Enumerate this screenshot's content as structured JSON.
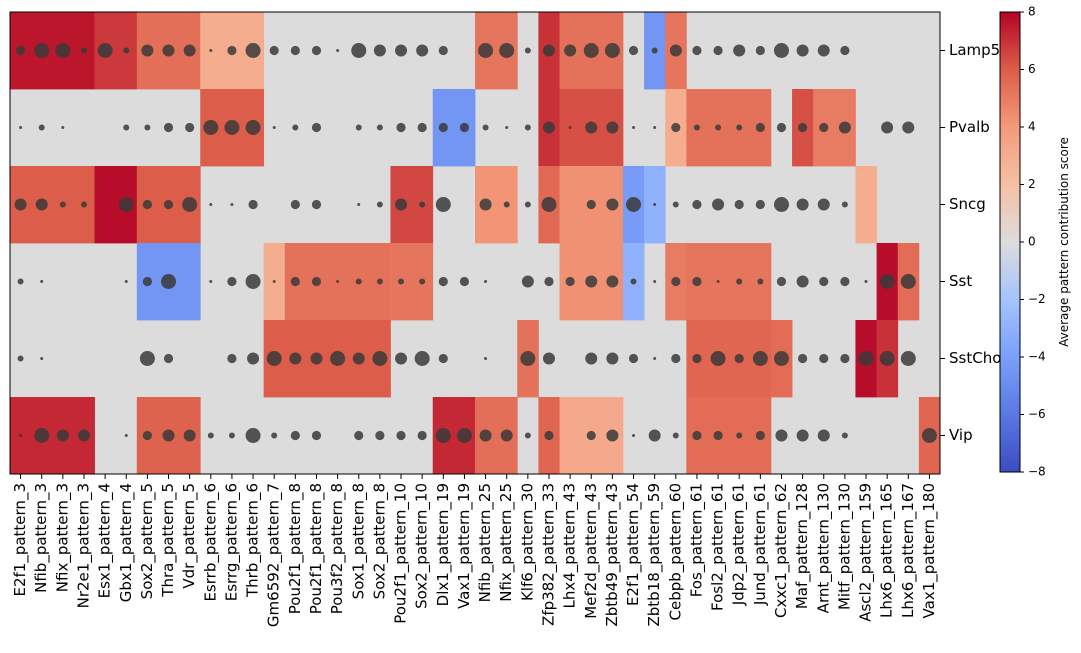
{
  "chart_data": {
    "type": "heatmap",
    "title": "",
    "xlabel": "",
    "ylabel": "",
    "colorbar": {
      "label": "Average pattern contribution score",
      "vmin": -8,
      "vmax": 8,
      "ticks": [
        -8,
        -6,
        -4,
        -2,
        0,
        2,
        4,
        6,
        8
      ],
      "colormap": "coolwarm"
    },
    "rows": [
      "Lamp5",
      "Pvalb",
      "Sncg",
      "Sst",
      "SstChodl",
      "Vip"
    ],
    "row_labels_visible": [
      "Lamp5",
      "Pvalb",
      "Sncg",
      "Sst",
      "SstCho",
      "Vip"
    ],
    "row_segments": [
      [
        {
          "from": "E2f1_pattern_3",
          "to": "Nr2e1_pattern_3",
          "value": 7.6
        },
        {
          "from": "Esx1_pattern_4",
          "to": "Gbx1_pattern_4",
          "value": 6.8
        },
        {
          "from": "Sox2_pattern_5",
          "to": "Vdr_pattern_5",
          "value": 5.4
        },
        {
          "from": "Esrrb_pattern_6",
          "to": "Thrb_pattern_6",
          "value": 3.0
        },
        {
          "from": "Nfib_pattern_25",
          "to": "Nfix_pattern_25",
          "value": 5.2
        },
        {
          "from": "Zfp382_pattern_33",
          "to": "Zfp382_pattern_33",
          "value": 7.0
        },
        {
          "from": "Lhx4_pattern_43",
          "to": "Zbtb49_pattern_43",
          "value": 5.3
        },
        {
          "from": "Zbtb18_pattern_59",
          "to": "Zbtb18_pattern_59",
          "value": -4.5
        },
        {
          "from": "Cebpb_pattern_60",
          "to": "Cebpb_pattern_60",
          "value": 5.2
        }
      ],
      [
        {
          "from": "Esrrb_pattern_6",
          "to": "Thrb_pattern_6",
          "value": 6.0
        },
        {
          "from": "Dlx1_pattern_19",
          "to": "Vax1_pattern_19",
          "value": -4.5
        },
        {
          "from": "Zfp382_pattern_33",
          "to": "Zfp382_pattern_33",
          "value": 7.0
        },
        {
          "from": "Lhx4_pattern_43",
          "to": "Zbtb49_pattern_43",
          "value": 6.3
        },
        {
          "from": "Cebpb_pattern_60",
          "to": "Cebpb_pattern_60",
          "value": 3.0
        },
        {
          "from": "Fos_pattern_61",
          "to": "Jund_pattern_61",
          "value": 5.3
        },
        {
          "from": "Maf_pattern_128",
          "to": "Maf_pattern_128",
          "value": 6.3
        },
        {
          "from": "Arnt_pattern_130",
          "to": "Mitf_pattern_130",
          "value": 5.0
        }
      ],
      [
        {
          "from": "E2f1_pattern_3",
          "to": "Nr2e1_pattern_3",
          "value": 6.0
        },
        {
          "from": "Esx1_pattern_4",
          "to": "Gbx1_pattern_4",
          "value": 7.8
        },
        {
          "from": "Sox2_pattern_5",
          "to": "Vdr_pattern_5",
          "value": 6.0
        },
        {
          "from": "Pou2f1_pattern_10",
          "to": "Sox2_pattern_10",
          "value": 6.5
        },
        {
          "from": "Nfib_pattern_25",
          "to": "Nfix_pattern_25",
          "value": 4.2
        },
        {
          "from": "Zfp382_pattern_33",
          "to": "Zfp382_pattern_33",
          "value": 5.6
        },
        {
          "from": "Lhx4_pattern_43",
          "to": "Zbtb49_pattern_43",
          "value": 4.3
        },
        {
          "from": "E2f1_pattern_54",
          "to": "E2f1_pattern_54",
          "value": -4.2
        },
        {
          "from": "Zbtb18_pattern_59",
          "to": "Zbtb18_pattern_59",
          "value": -3.0
        },
        {
          "from": "Ascl2_pattern_159",
          "to": "Ascl2_pattern_159",
          "value": 3.0
        }
      ],
      [
        {
          "from": "Sox2_pattern_5",
          "to": "Vdr_pattern_5",
          "value": -4.5
        },
        {
          "from": "Gm6592_pattern_7",
          "to": "Gm6592_pattern_7",
          "value": 3.0
        },
        {
          "from": "Pou2f1_pattern_8",
          "to": "Sox2_pattern_8",
          "value": 5.3
        },
        {
          "from": "Pou2f1_pattern_10",
          "to": "Sox2_pattern_10",
          "value": 5.2
        },
        {
          "from": "Lhx4_pattern_43",
          "to": "Zbtb49_pattern_43",
          "value": 4.3
        },
        {
          "from": "E2f1_pattern_54",
          "to": "E2f1_pattern_54",
          "value": -3.0
        },
        {
          "from": "Cebpb_pattern_60",
          "to": "Cebpb_pattern_60",
          "value": 5.0
        },
        {
          "from": "Fos_pattern_61",
          "to": "Jund_pattern_61",
          "value": 5.2
        },
        {
          "from": "Lhx6_pattern_165",
          "to": "Lhx6_pattern_165",
          "value": 7.8
        },
        {
          "from": "Lhx6_pattern_167",
          "to": "Lhx6_pattern_167",
          "value": 5.5
        }
      ],
      [
        {
          "from": "Gm6592_pattern_7",
          "to": "Sox2_pattern_8",
          "value": 6.0
        },
        {
          "from": "Klf6_pattern_30",
          "to": "Klf6_pattern_30",
          "value": 5.3
        },
        {
          "from": "Fos_pattern_61",
          "to": "Jund_pattern_61",
          "value": 5.7
        },
        {
          "from": "Cxxc1_pattern_62",
          "to": "Cxxc1_pattern_62",
          "value": 5.5
        },
        {
          "from": "Ascl2_pattern_159",
          "to": "Ascl2_pattern_159",
          "value": 7.8
        },
        {
          "from": "Lhx6_pattern_165",
          "to": "Lhx6_pattern_165",
          "value": 7.0
        }
      ],
      [
        {
          "from": "E2f1_pattern_3",
          "to": "Nr2e1_pattern_3",
          "value": 7.2
        },
        {
          "from": "Sox2_pattern_5",
          "to": "Vdr_pattern_5",
          "value": 5.8
        },
        {
          "from": "Dlx1_pattern_19",
          "to": "Vax1_pattern_19",
          "value": 7.2
        },
        {
          "from": "Nfib_pattern_25",
          "to": "Nfix_pattern_25",
          "value": 5.4
        },
        {
          "from": "Zfp382_pattern_33",
          "to": "Zfp382_pattern_33",
          "value": 5.7
        },
        {
          "from": "Lhx4_pattern_43",
          "to": "Zbtb49_pattern_43",
          "value": 3.2
        },
        {
          "from": "Fos_pattern_61",
          "to": "Jund_pattern_61",
          "value": 5.5
        },
        {
          "from": "Vax1_pattern_180",
          "to": "Vax1_pattern_180",
          "value": 5.7
        }
      ]
    ],
    "columns": [
      "E2f1_pattern_3",
      "Nfib_pattern_3",
      "Nfix_pattern_3",
      "Nr2e1_pattern_3",
      "Esx1_pattern_4",
      "Gbx1_pattern_4",
      "Sox2_pattern_5",
      "Thra_pattern_5",
      "Vdr_pattern_5",
      "Esrrb_pattern_6",
      "Esrrg_pattern_6",
      "Thrb_pattern_6",
      "Gm6592_pattern_7",
      "Pou2f1_pattern_8",
      "Pou2f1_pattern_8",
      "Pou3f2_pattern_8",
      "Sox1_pattern_8",
      "Sox2_pattern_8",
      "Pou2f1_pattern_10",
      "Sox2_pattern_10",
      "Dlx1_pattern_19",
      "Vax1_pattern_19",
      "Nfib_pattern_25",
      "Nfix_pattern_25",
      "Klf6_pattern_30",
      "Zfp382_pattern_33",
      "Lhx4_pattern_43",
      "Mef2d_pattern_43",
      "Zbtb49_pattern_43",
      "E2f1_pattern_54",
      "Zbtb18_pattern_59",
      "Cebpb_pattern_60",
      "Fos_pattern_61",
      "Fosl2_pattern_61",
      "Jdp2_pattern_61",
      "Jund_pattern_61",
      "Cxxc1_pattern_62",
      "Maf_pattern_128",
      "Arnt_pattern_130",
      "Mitf_pattern_130",
      "Ascl2_pattern_159",
      "Lhx6_pattern_165",
      "Lhx6_pattern_167",
      "Vax1_pattern_180"
    ],
    "dot_sizes": [
      [
        3,
        5,
        5,
        2,
        5,
        2,
        4,
        4,
        4,
        1,
        3,
        5,
        3,
        3,
        3,
        1,
        5,
        4,
        4,
        4,
        3,
        0,
        5,
        5,
        2,
        4,
        4,
        5,
        5,
        3,
        2,
        4,
        3,
        3,
        4,
        3,
        5,
        4,
        4,
        3,
        0,
        0,
        0,
        0
      ],
      [
        1,
        2,
        1,
        0,
        0,
        2,
        2,
        3,
        3,
        5,
        5,
        5,
        1,
        2,
        3,
        0,
        2,
        2,
        3,
        3,
        3,
        3,
        2,
        1,
        2,
        4,
        1,
        4,
        4,
        1,
        1,
        3,
        2,
        2,
        2,
        3,
        3,
        3,
        3,
        4,
        0,
        4,
        4,
        0
      ],
      [
        4,
        4,
        2,
        2,
        0,
        5,
        3,
        3,
        5,
        1,
        1,
        3,
        0,
        3,
        3,
        0,
        1,
        2,
        4,
        2,
        5,
        0,
        4,
        2,
        2,
        5,
        0,
        3,
        4,
        5,
        1,
        2,
        3,
        4,
        3,
        3,
        5,
        4,
        4,
        2,
        0,
        0,
        0,
        0
      ],
      [
        2,
        1,
        0,
        0,
        0,
        1,
        3,
        5,
        0,
        1,
        3,
        5,
        1,
        3,
        3,
        1,
        2,
        2,
        2,
        2,
        3,
        3,
        1,
        0,
        4,
        3,
        3,
        4,
        4,
        2,
        1,
        3,
        3,
        1,
        2,
        2,
        3,
        4,
        3,
        3,
        1,
        5,
        5,
        0
      ],
      [
        2,
        1,
        0,
        0,
        0,
        0,
        5,
        3,
        0,
        0,
        3,
        4,
        5,
        4,
        4,
        5,
        4,
        5,
        4,
        5,
        3,
        0,
        1,
        0,
        5,
        4,
        0,
        4,
        4,
        3,
        1,
        3,
        3,
        5,
        3,
        5,
        5,
        3,
        3,
        3,
        5,
        5,
        5,
        0
      ],
      [
        1,
        5,
        4,
        4,
        0,
        1,
        3,
        4,
        4,
        2,
        2,
        5,
        2,
        3,
        3,
        0,
        3,
        3,
        3,
        3,
        5,
        5,
        4,
        4,
        2,
        3,
        0,
        3,
        4,
        1,
        4,
        2,
        3,
        3,
        2,
        3,
        4,
        4,
        4,
        2,
        0,
        0,
        0,
        5
      ]
    ],
    "dot_size_scale": "0-5 relative fraction of cells with pattern"
  }
}
